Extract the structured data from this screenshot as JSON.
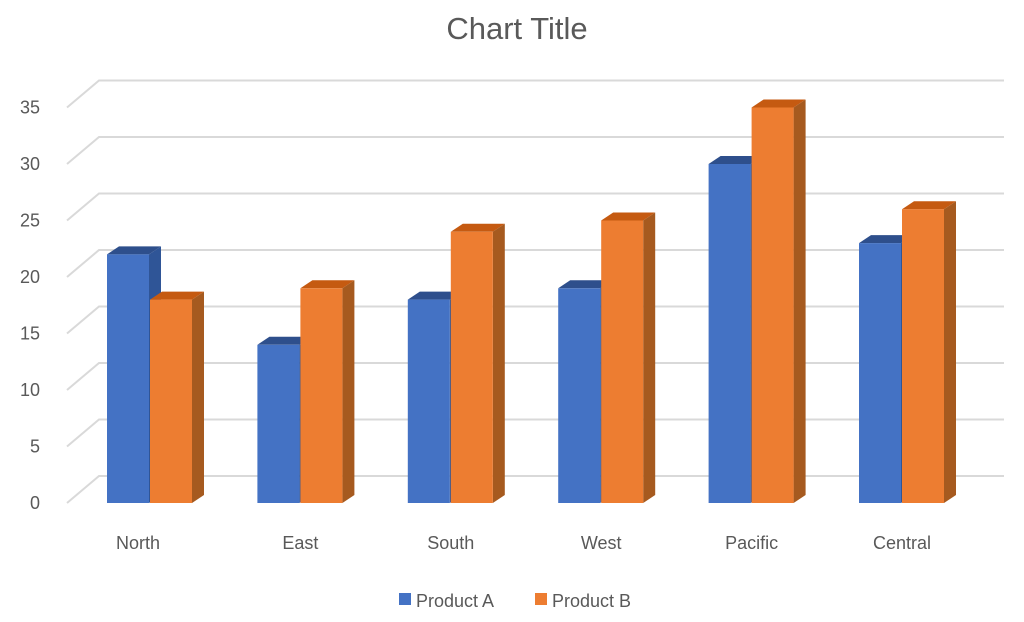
{
  "chart_data": {
    "type": "bar",
    "title": "Chart Title",
    "categories": [
      "North",
      "East",
      "South",
      "West",
      "Pacific",
      "Central"
    ],
    "series": [
      {
        "name": "Product A",
        "values": [
          22,
          14,
          18,
          19,
          30,
          23
        ],
        "color": "#4472C4",
        "side_color": "#2F5597",
        "top_color": "#2E4F8C"
      },
      {
        "name": "Product B",
        "values": [
          18,
          19,
          24,
          25,
          35,
          26
        ],
        "color": "#ED7D31",
        "side_color": "#A65A1F",
        "top_color": "#C55A11"
      }
    ],
    "yticks": [
      "0",
      "5",
      "10",
      "15",
      "20",
      "25",
      "30",
      "35"
    ],
    "ylim": [
      0,
      35
    ],
    "grid": true,
    "legend": "bottom",
    "style": "3d-clustered-column"
  }
}
